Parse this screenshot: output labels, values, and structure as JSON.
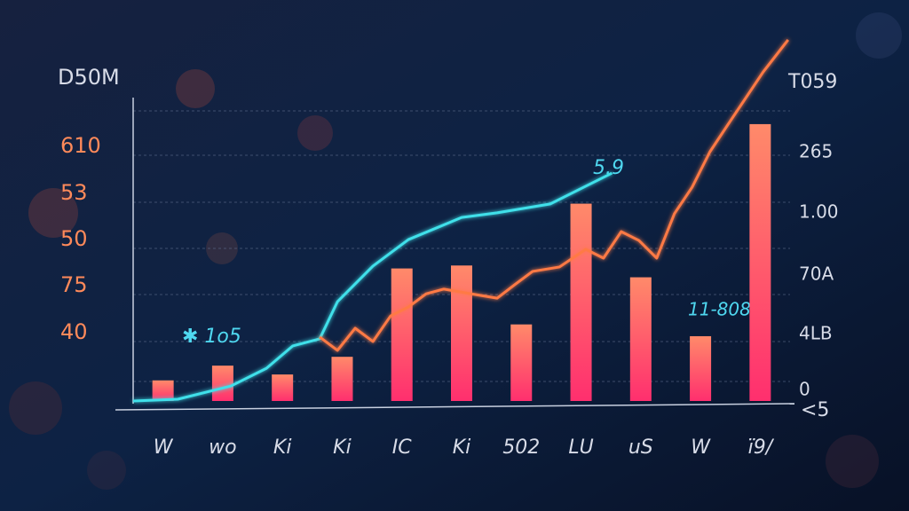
{
  "chart_data": {
    "type": "bar",
    "title": "D50M",
    "subtitle": "T059",
    "annotations": [
      "✱ 1o5",
      "5.9",
      "11-808",
      "<5"
    ],
    "y_axis_labels": [
      "610",
      "53",
      "50",
      "75",
      "40"
    ],
    "y2_axis_labels": [
      "265",
      "1.00",
      "70A",
      "4LB",
      "0"
    ],
    "categories": [
      "W",
      "wo",
      "Ki",
      "Ki",
      "IC",
      "Ki",
      "502",
      "LU",
      "uS",
      "W",
      "ï9/"
    ],
    "values": [
      7,
      12,
      9,
      15,
      45,
      46,
      26,
      67,
      42,
      22,
      94
    ],
    "color": "#ff4f6a",
    "ylim": [
      0,
      125
    ],
    "xlim": [
      0,
      100
    ],
    "series": [
      {
        "color": "#3fe0ea",
        "x": [
          0,
          6.8,
          14.9,
          20.3,
          24.3,
          28.4,
          31.1,
          36.5,
          41.9,
          50,
          55.4,
          63.5,
          72.9
        ],
        "values": [
          0,
          0.6,
          5.1,
          11.1,
          18.7,
          21.1,
          33.7,
          45.8,
          54.8,
          62.3,
          63.9,
          66.9,
          77.4
        ]
      },
      {
        "color": "#ff7a45",
        "x": [
          28.4,
          31.1,
          33.8,
          36.5,
          39.2,
          41.9,
          44.6,
          47.3,
          51.4,
          55.4,
          58.1,
          60.8,
          64.9,
          68.9,
          71.6,
          74.3,
          77,
          79.7,
          82.4,
          85.1,
          87.8,
          90.5,
          93.2,
          95.9,
          99.7
        ],
        "values": [
          21.7,
          17.2,
          24.7,
          20.2,
          28.9,
          31.9,
          36.4,
          38,
          36.4,
          34.9,
          39.5,
          44,
          45.5,
          51.5,
          48.5,
          57.5,
          54.5,
          48.5,
          63.6,
          72.6,
          84.6,
          93.7,
          102.7,
          111.7,
          122.6
        ]
      }
    ]
  }
}
